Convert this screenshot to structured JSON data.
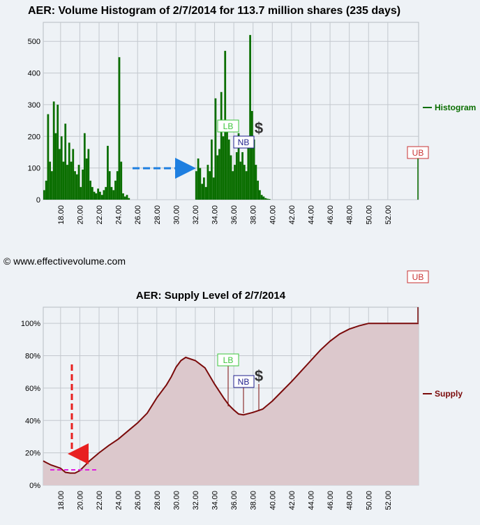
{
  "top_chart": {
    "title": "AER: Volume Histogram of 2/7/2014 for 113.7 million shares (235 days)",
    "legend": "Histogram",
    "colors": {
      "bar": "#0a6e00",
      "legend": "#0a6e00",
      "lb": "#3cc63c",
      "nb": "#1f1f8c",
      "ub": "#c83232",
      "arrow": "#1e7fe0",
      "dollar": "#333333"
    },
    "markers": {
      "lb": "LB",
      "nb": "NB",
      "ub": "UB",
      "dollar": "$"
    }
  },
  "watermark": "© www.effectivevolume.com",
  "bottom_chart": {
    "title": "AER: Supply Level of 2/7/2014",
    "legend": "Supply",
    "colors": {
      "line": "#7a0a0a",
      "fill": "#dcc8cc",
      "arrow": "#e82020",
      "dashed": "#e020e0",
      "lb": "#3cc63c",
      "nb": "#1f1f8c",
      "ub": "#c83232",
      "dollar": "#333333"
    },
    "markers": {
      "lb": "LB",
      "nb": "NB",
      "ub": "UB",
      "dollar": "$"
    }
  },
  "chart_data": [
    {
      "type": "bar",
      "title": "AER: Volume Histogram of 2/7/2014 for 113.7 million shares (235 days)",
      "legend": [
        "Histogram"
      ],
      "legend_position": "right",
      "grid": true,
      "xlim": [
        16.2,
        55.2
      ],
      "ylim": [
        0,
        560
      ],
      "x_ticks": [
        "18.00",
        "20.00",
        "22.00",
        "24.00",
        "26.00",
        "28.00",
        "30.00",
        "32.00",
        "34.00",
        "36.00",
        "38.00",
        "40.00",
        "42.00",
        "44.00",
        "46.00",
        "48.00",
        "50.00",
        "52.00"
      ],
      "y_ticks": [
        "0",
        "100",
        "200",
        "300",
        "400",
        "500"
      ],
      "x": [
        16.2,
        16.4,
        16.6,
        16.8,
        17.0,
        17.2,
        17.4,
        17.6,
        17.8,
        18.0,
        18.2,
        18.4,
        18.6,
        18.8,
        19.0,
        19.2,
        19.4,
        19.6,
        19.8,
        20.0,
        20.2,
        20.4,
        20.6,
        20.8,
        21.0,
        21.2,
        21.4,
        21.6,
        21.8,
        22.0,
        22.2,
        22.4,
        22.6,
        22.8,
        23.0,
        23.2,
        23.4,
        23.6,
        23.8,
        24.0,
        24.2,
        24.4,
        24.6,
        24.8,
        25.0,
        32.0,
        32.2,
        32.4,
        32.6,
        32.8,
        33.0,
        33.2,
        33.4,
        33.6,
        33.8,
        34.0,
        34.2,
        34.4,
        34.6,
        34.8,
        35.0,
        35.2,
        35.4,
        35.6,
        35.8,
        36.0,
        36.2,
        36.4,
        36.6,
        36.8,
        37.0,
        37.2,
        37.4,
        37.6,
        37.8,
        38.0,
        38.2,
        38.4,
        38.6,
        38.8,
        39.0,
        39.2,
        39.4,
        39.6
      ],
      "values": [
        30,
        60,
        270,
        120,
        90,
        310,
        210,
        300,
        160,
        200,
        120,
        240,
        110,
        180,
        120,
        160,
        90,
        80,
        110,
        40,
        95,
        210,
        130,
        160,
        60,
        40,
        25,
        20,
        35,
        25,
        15,
        30,
        40,
        170,
        90,
        40,
        30,
        60,
        90,
        450,
        120,
        20,
        10,
        15,
        5,
        90,
        130,
        100,
        50,
        70,
        40,
        110,
        90,
        190,
        70,
        320,
        140,
        160,
        340,
        200,
        470,
        250,
        190,
        140,
        90,
        110,
        150,
        210,
        120,
        150,
        110,
        90,
        200,
        520,
        280,
        190,
        110,
        60,
        30,
        15,
        10,
        5,
        3,
        2
      ],
      "annotations": [
        {
          "label": "LB",
          "x": 35.2
        },
        {
          "label": "NB",
          "x": 36.5
        },
        {
          "label": "UB",
          "x": 54.9,
          "value": 135
        },
        {
          "label": "$",
          "x": 38.1
        }
      ]
    },
    {
      "type": "area",
      "title": "AER: Supply Level of 2/7/2014",
      "legend": [
        "Supply"
      ],
      "legend_position": "right",
      "grid": true,
      "xlim": [
        16.2,
        55.2
      ],
      "ylim": [
        0,
        110
      ],
      "x_ticks": [
        "18.00",
        "20.00",
        "22.00",
        "24.00",
        "26.00",
        "28.00",
        "30.00",
        "32.00",
        "34.00",
        "36.00",
        "38.00",
        "40.00",
        "42.00",
        "44.00",
        "46.00",
        "48.00",
        "50.00",
        "52.00"
      ],
      "y_ticks": [
        "0%",
        "20%",
        "40%",
        "60%",
        "80%",
        "100%"
      ],
      "x": [
        16.2,
        16.5,
        17.0,
        17.5,
        18.0,
        18.5,
        19.0,
        19.5,
        20.0,
        20.5,
        21.0,
        22.0,
        23.0,
        24.0,
        25.0,
        26.0,
        27.0,
        28.0,
        29.0,
        29.5,
        30.0,
        30.5,
        31.0,
        32.0,
        33.0,
        34.0,
        35.0,
        35.5,
        36.0,
        36.5,
        37.0,
        38.0,
        39.0,
        40.0,
        41.0,
        42.0,
        43.0,
        44.0,
        45.0,
        46.0,
        47.0,
        48.0,
        49.0,
        50.0,
        51.0,
        52.0,
        53.0,
        54.0,
        55.2
      ],
      "values": [
        15,
        14,
        12.5,
        11.5,
        10.5,
        8,
        7.5,
        7.5,
        9,
        12,
        15,
        20,
        24.5,
        28.5,
        33.5,
        38.5,
        44.5,
        54,
        62,
        67,
        73,
        77,
        79,
        77,
        72.5,
        62.5,
        53.5,
        49.5,
        46.5,
        44,
        43.5,
        45,
        47,
        52,
        58,
        64,
        70.5,
        77,
        83.5,
        89,
        93.5,
        96.5,
        98.5,
        100,
        100,
        100,
        100,
        100,
        100
      ],
      "annotations": [
        {
          "label": "LB",
          "x": 35.2
        },
        {
          "label": "NB",
          "x": 36.5
        },
        {
          "label": "UB",
          "x": 54.9
        },
        {
          "label": "$",
          "x": 38.1
        }
      ]
    }
  ]
}
